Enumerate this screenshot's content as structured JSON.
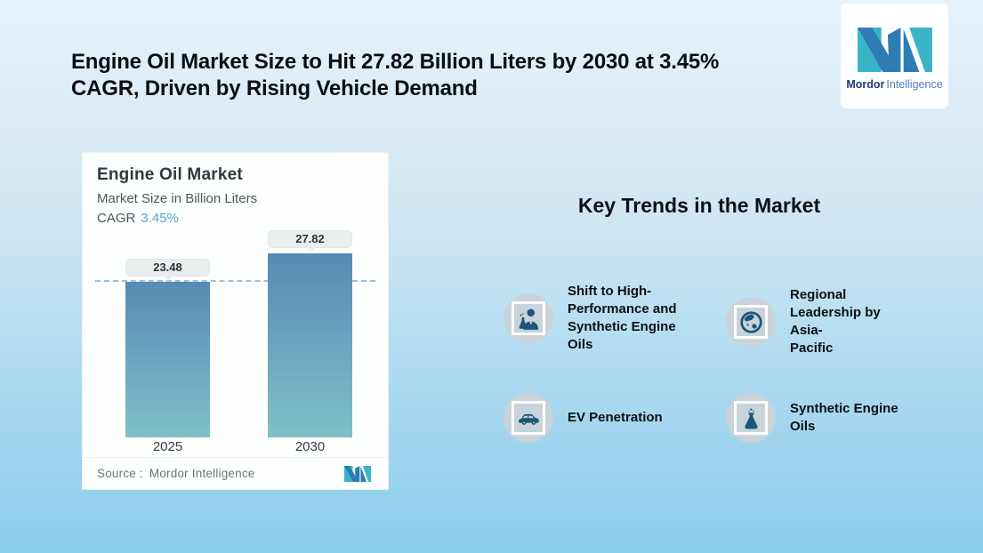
{
  "header": {
    "title": "Engine Oil Market Size to Hit 27.82 Billion Liters by 2030 at 3.45%\nCAGR, Driven by Rising Vehicle Demand"
  },
  "brand": {
    "name_bold": "Mordor",
    "name_light": "Intelligence"
  },
  "chart_card": {
    "title": "Engine Oil Market",
    "subtitle": "Market Size in Billion Liters",
    "cagr_label": "CAGR",
    "cagr_value": "3.45%",
    "source_label": "Source :",
    "source_value": "Mordor Intelligence"
  },
  "chart_data": {
    "type": "bar",
    "title": "Engine Oil Market",
    "subtitle": "Market Size in Billion Liters",
    "unit": "Billion Liters",
    "cagr": "3.45%",
    "categories": [
      "2025",
      "2030"
    ],
    "values": [
      23.48,
      27.82
    ],
    "data_labels": [
      "23.48",
      "27.82"
    ],
    "reference_line": 23.48,
    "ylim": [
      0,
      27.82
    ],
    "grid": false,
    "legend": false,
    "bar_gradient": [
      "#578ab3",
      "#7fc0c9"
    ],
    "source": "Source : Mordor Intelligence"
  },
  "trends": {
    "heading": "Key Trends in the Market",
    "items": [
      {
        "icon": "scientist-icon",
        "label": "Shift to High-\nPerformance and\nSynthetic Engine\nOils"
      },
      {
        "icon": "globe-icon",
        "label": "Regional\nLeadership by Asia-\nPacific"
      },
      {
        "icon": "car-icon",
        "label": "EV Penetration"
      },
      {
        "icon": "flask-icon",
        "label": "Synthetic Engine\nOils"
      }
    ]
  },
  "colors": {
    "background_top": "#e7f2fa",
    "background_bottom": "#8bcdea",
    "bar_top": "#578ab3",
    "bar_bottom": "#7fc0c9",
    "cagr_accent": "#5aa3cb",
    "reference_line": "#9dc0d7",
    "brand_teal": "#3cb4c7",
    "brand_blue": "#2e7cb4",
    "icon_circle": "#c9d3da",
    "icon_glyph": "#1b5878"
  }
}
